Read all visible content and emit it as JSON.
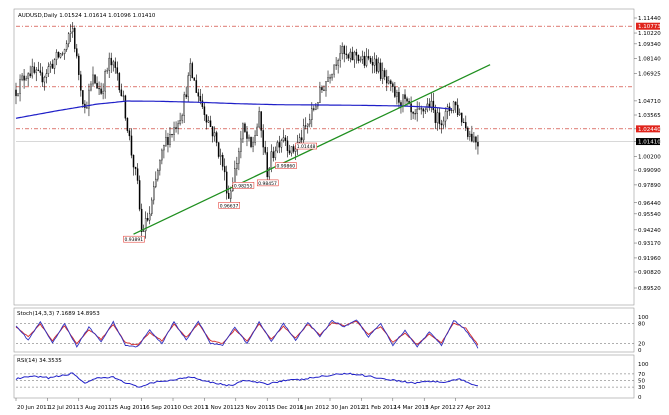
{
  "header": {
    "symbol_line": "AUDUSD,Daily  1.01524 1.01614 1.01096 1.01410"
  },
  "colors": {
    "candle": "#000000",
    "ma": "#1f1fc8",
    "trendline": "#1f8f1f",
    "resistance": "#c8281e",
    "label_red": "#e0241c",
    "stoch_main": "#3030c0",
    "stoch_signal": "#d02828",
    "rsi": "#1f1fc8"
  },
  "chart_data": [
    {
      "type": "candlestick",
      "title": "AUDUSD,Daily",
      "ohlc_header": {
        "open": 1.01524,
        "high": 1.01614,
        "low": 1.01096,
        "close": 1.0141
      },
      "x_tick_labels": [
        "20 Jun 2011",
        "12 Jul 2011",
        "3 Aug 2011",
        "25 Aug 2011",
        "16 Sep 2011",
        "10 Oct 2011",
        "1 Nov 2011",
        "23 Nov 2011",
        "15 Dec 2011",
        "6 Jan 2012",
        "30 Jan 2012",
        "21 Feb 2012",
        "14 Mar 2012",
        "5 Apr 2012",
        "27 Apr 2012"
      ],
      "y_tick_labels": [
        "1.11440",
        "1.10220",
        "1.09340",
        "1.08140",
        "1.06925",
        "1.04710",
        "1.03565",
        "1.02440",
        "1.01410",
        "1.00200",
        "0.99090",
        "0.97890",
        "0.96440",
        "0.95540",
        "0.94240",
        "0.93170",
        "0.91960",
        "0.90820",
        "0.89520"
      ],
      "ylim": [
        0.8952,
        1.1144
      ],
      "current_price_label": "1.01410",
      "red_price_labels": [
        "1.10773",
        "1.02440"
      ],
      "horizontal_levels": [
        1.10773,
        1.0585,
        1.0244
      ],
      "swing_low_labels": [
        {
          "text": "0.93891",
          "price": 0.9389
        },
        {
          "text": "0.96637",
          "price": 0.9664
        },
        {
          "text": "0.98255",
          "price": 0.9826
        },
        {
          "text": "0.98457",
          "price": 0.9846
        },
        {
          "text": "0.99860",
          "price": 0.9986
        },
        {
          "text": "1.01448",
          "price": 1.0145
        }
      ],
      "moving_average_anchors": [
        {
          "bar": 0,
          "value": 1.033
        },
        {
          "bar": 20,
          "value": 1.039
        },
        {
          "bar": 40,
          "value": 1.0445
        },
        {
          "bar": 55,
          "value": 1.047
        },
        {
          "bar": 70,
          "value": 1.0468
        },
        {
          "bar": 90,
          "value": 1.046
        },
        {
          "bar": 110,
          "value": 1.0448
        },
        {
          "bar": 130,
          "value": 1.044
        },
        {
          "bar": 150,
          "value": 1.0438
        },
        {
          "bar": 170,
          "value": 1.0435
        },
        {
          "bar": 190,
          "value": 1.043
        },
        {
          "bar": 205,
          "value": 1.042
        },
        {
          "bar": 215,
          "value": 1.0405
        }
      ],
      "trendline": {
        "from": {
          "bar": 58,
          "price": 0.9389
        },
        "to": {
          "bar": 234,
          "price": 1.0765
        }
      },
      "price_anchors": [
        {
          "bar": 0,
          "price": 1.056
        },
        {
          "bar": 6,
          "price": 1.072
        },
        {
          "bar": 12,
          "price": 1.065
        },
        {
          "bar": 18,
          "price": 1.078
        },
        {
          "bar": 24,
          "price": 1.088
        },
        {
          "bar": 28,
          "price": 1.106
        },
        {
          "bar": 30,
          "price": 1.08
        },
        {
          "bar": 34,
          "price": 1.04
        },
        {
          "bar": 38,
          "price": 1.065
        },
        {
          "bar": 42,
          "price": 1.055
        },
        {
          "bar": 46,
          "price": 1.078
        },
        {
          "bar": 50,
          "price": 1.07
        },
        {
          "bar": 54,
          "price": 1.038
        },
        {
          "bar": 57,
          "price": 1.005
        },
        {
          "bar": 60,
          "price": 0.978
        },
        {
          "bar": 62,
          "price": 0.94
        },
        {
          "bar": 66,
          "price": 0.955
        },
        {
          "bar": 70,
          "price": 0.99
        },
        {
          "bar": 74,
          "price": 1.015
        },
        {
          "bar": 78,
          "price": 1.025
        },
        {
          "bar": 82,
          "price": 1.04
        },
        {
          "bar": 86,
          "price": 1.072
        },
        {
          "bar": 90,
          "price": 1.052
        },
        {
          "bar": 94,
          "price": 1.035
        },
        {
          "bar": 98,
          "price": 1.018
        },
        {
          "bar": 102,
          "price": 0.995
        },
        {
          "bar": 105,
          "price": 0.969
        },
        {
          "bar": 108,
          "price": 0.99
        },
        {
          "bar": 112,
          "price": 1.024
        },
        {
          "bar": 116,
          "price": 1.008
        },
        {
          "bar": 120,
          "price": 1.033
        },
        {
          "bar": 124,
          "price": 0.99
        },
        {
          "bar": 128,
          "price": 1.01
        },
        {
          "bar": 132,
          "price": 1.02
        },
        {
          "bar": 136,
          "price": 1.005
        },
        {
          "bar": 140,
          "price": 1.015
        },
        {
          "bar": 144,
          "price": 1.028
        },
        {
          "bar": 148,
          "price": 1.045
        },
        {
          "bar": 152,
          "price": 1.06
        },
        {
          "bar": 156,
          "price": 1.074
        },
        {
          "bar": 160,
          "price": 1.088
        },
        {
          "bar": 164,
          "price": 1.08
        },
        {
          "bar": 168,
          "price": 1.085
        },
        {
          "bar": 172,
          "price": 1.078
        },
        {
          "bar": 176,
          "price": 1.082
        },
        {
          "bar": 180,
          "price": 1.07
        },
        {
          "bar": 184,
          "price": 1.058
        },
        {
          "bar": 188,
          "price": 1.05
        },
        {
          "bar": 192,
          "price": 1.046
        },
        {
          "bar": 196,
          "price": 1.032
        },
        {
          "bar": 200,
          "price": 1.038
        },
        {
          "bar": 204,
          "price": 1.045
        },
        {
          "bar": 208,
          "price": 1.032
        },
        {
          "bar": 212,
          "price": 1.035
        },
        {
          "bar": 216,
          "price": 1.046
        },
        {
          "bar": 220,
          "price": 1.033
        },
        {
          "bar": 224,
          "price": 1.02
        },
        {
          "bar": 228,
          "price": 1.014
        }
      ]
    },
    {
      "type": "line",
      "title": "Stoch(14,3,3) 7.1689 14.8953",
      "y_tick_labels": [
        "100",
        "80",
        "20",
        "0"
      ],
      "ylim": [
        0,
        100
      ],
      "levels": [
        80,
        20
      ],
      "main_anchors": [
        {
          "bar": 0,
          "v": 75
        },
        {
          "bar": 6,
          "v": 30
        },
        {
          "bar": 12,
          "v": 85
        },
        {
          "bar": 18,
          "v": 20
        },
        {
          "bar": 24,
          "v": 80
        },
        {
          "bar": 30,
          "v": 10
        },
        {
          "bar": 36,
          "v": 70
        },
        {
          "bar": 42,
          "v": 25
        },
        {
          "bar": 48,
          "v": 85
        },
        {
          "bar": 54,
          "v": 15
        },
        {
          "bar": 60,
          "v": 10
        },
        {
          "bar": 66,
          "v": 60
        },
        {
          "bar": 72,
          "v": 20
        },
        {
          "bar": 78,
          "v": 85
        },
        {
          "bar": 84,
          "v": 30
        },
        {
          "bar": 90,
          "v": 88
        },
        {
          "bar": 96,
          "v": 20
        },
        {
          "bar": 102,
          "v": 15
        },
        {
          "bar": 108,
          "v": 70
        },
        {
          "bar": 114,
          "v": 20
        },
        {
          "bar": 120,
          "v": 85
        },
        {
          "bar": 126,
          "v": 25
        },
        {
          "bar": 132,
          "v": 80
        },
        {
          "bar": 138,
          "v": 30
        },
        {
          "bar": 144,
          "v": 85
        },
        {
          "bar": 150,
          "v": 40
        },
        {
          "bar": 156,
          "v": 90
        },
        {
          "bar": 162,
          "v": 70
        },
        {
          "bar": 168,
          "v": 92
        },
        {
          "bar": 174,
          "v": 40
        },
        {
          "bar": 180,
          "v": 80
        },
        {
          "bar": 186,
          "v": 15
        },
        {
          "bar": 192,
          "v": 60
        },
        {
          "bar": 198,
          "v": 10
        },
        {
          "bar": 204,
          "v": 55
        },
        {
          "bar": 210,
          "v": 15
        },
        {
          "bar": 216,
          "v": 90
        },
        {
          "bar": 222,
          "v": 60
        },
        {
          "bar": 228,
          "v": 7
        }
      ],
      "signal_anchors": [
        {
          "bar": 0,
          "v": 70
        },
        {
          "bar": 6,
          "v": 40
        },
        {
          "bar": 12,
          "v": 78
        },
        {
          "bar": 18,
          "v": 28
        },
        {
          "bar": 24,
          "v": 74
        },
        {
          "bar": 30,
          "v": 18
        },
        {
          "bar": 36,
          "v": 62
        },
        {
          "bar": 42,
          "v": 32
        },
        {
          "bar": 48,
          "v": 78
        },
        {
          "bar": 54,
          "v": 22
        },
        {
          "bar": 60,
          "v": 15
        },
        {
          "bar": 66,
          "v": 52
        },
        {
          "bar": 72,
          "v": 28
        },
        {
          "bar": 78,
          "v": 78
        },
        {
          "bar": 84,
          "v": 38
        },
        {
          "bar": 90,
          "v": 80
        },
        {
          "bar": 96,
          "v": 28
        },
        {
          "bar": 102,
          "v": 20
        },
        {
          "bar": 108,
          "v": 62
        },
        {
          "bar": 114,
          "v": 28
        },
        {
          "bar": 120,
          "v": 78
        },
        {
          "bar": 126,
          "v": 32
        },
        {
          "bar": 132,
          "v": 72
        },
        {
          "bar": 138,
          "v": 36
        },
        {
          "bar": 144,
          "v": 78
        },
        {
          "bar": 150,
          "v": 46
        },
        {
          "bar": 156,
          "v": 84
        },
        {
          "bar": 162,
          "v": 74
        },
        {
          "bar": 168,
          "v": 86
        },
        {
          "bar": 174,
          "v": 48
        },
        {
          "bar": 180,
          "v": 72
        },
        {
          "bar": 186,
          "v": 22
        },
        {
          "bar": 192,
          "v": 52
        },
        {
          "bar": 198,
          "v": 16
        },
        {
          "bar": 204,
          "v": 48
        },
        {
          "bar": 210,
          "v": 22
        },
        {
          "bar": 216,
          "v": 82
        },
        {
          "bar": 222,
          "v": 66
        },
        {
          "bar": 228,
          "v": 15
        }
      ]
    },
    {
      "type": "line",
      "title": "RSI(14) 34.3535",
      "y_tick_labels": [
        "100",
        "70",
        "50",
        "30",
        "0"
      ],
      "ylim": [
        0,
        100
      ],
      "levels": [
        70,
        50,
        30
      ],
      "anchors": [
        {
          "bar": 0,
          "v": 55
        },
        {
          "bar": 8,
          "v": 62
        },
        {
          "bar": 16,
          "v": 58
        },
        {
          "bar": 24,
          "v": 66
        },
        {
          "bar": 28,
          "v": 72
        },
        {
          "bar": 34,
          "v": 42
        },
        {
          "bar": 40,
          "v": 56
        },
        {
          "bar": 48,
          "v": 60
        },
        {
          "bar": 54,
          "v": 44
        },
        {
          "bar": 60,
          "v": 30
        },
        {
          "bar": 66,
          "v": 40
        },
        {
          "bar": 72,
          "v": 48
        },
        {
          "bar": 78,
          "v": 52
        },
        {
          "bar": 86,
          "v": 62
        },
        {
          "bar": 94,
          "v": 48
        },
        {
          "bar": 102,
          "v": 38
        },
        {
          "bar": 106,
          "v": 34
        },
        {
          "bar": 112,
          "v": 50
        },
        {
          "bar": 118,
          "v": 45
        },
        {
          "bar": 124,
          "v": 40
        },
        {
          "bar": 132,
          "v": 50
        },
        {
          "bar": 140,
          "v": 52
        },
        {
          "bar": 148,
          "v": 60
        },
        {
          "bar": 156,
          "v": 66
        },
        {
          "bar": 162,
          "v": 72
        },
        {
          "bar": 168,
          "v": 68
        },
        {
          "bar": 174,
          "v": 64
        },
        {
          "bar": 180,
          "v": 56
        },
        {
          "bar": 188,
          "v": 50
        },
        {
          "bar": 196,
          "v": 42
        },
        {
          "bar": 204,
          "v": 48
        },
        {
          "bar": 212,
          "v": 44
        },
        {
          "bar": 218,
          "v": 55
        },
        {
          "bar": 224,
          "v": 42
        },
        {
          "bar": 228,
          "v": 34
        }
      ]
    }
  ]
}
